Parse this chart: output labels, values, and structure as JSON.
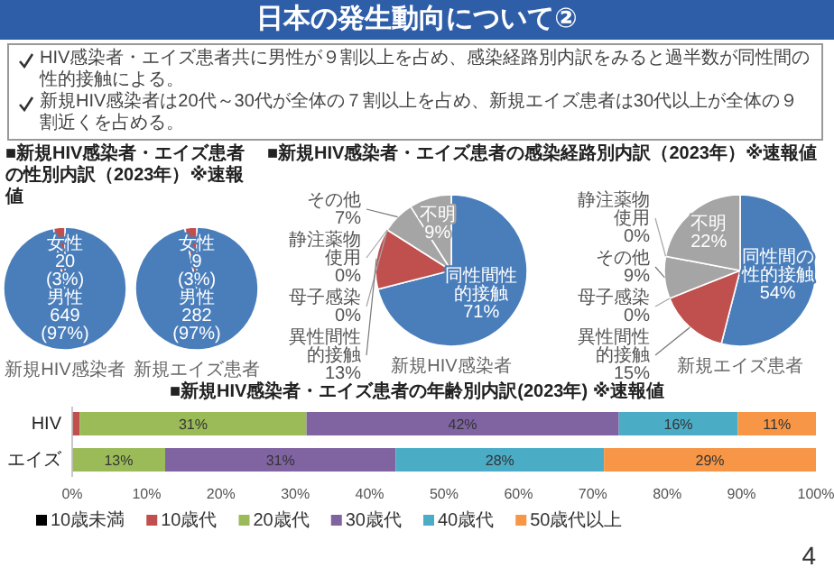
{
  "chart_data": [
    {
      "type": "other",
      "title": "日本の発生動向について②",
      "annotations": [
        "HIV感染者・エイズ患者共に男性が９割以上を占め、感染経路別内訳をみると過半数が同性間の性的接触による。",
        "新規HIV感染者は20代～30代が全体の７割以上を占め、新規エイズ患者は30代以上が全体の９割近くを占める。"
      ]
    },
    {
      "type": "pie",
      "title": "■新規HIV感染者・エイズ患者の性別内訳（2023年）※速報値",
      "xlabel": "新規HIV感染者",
      "categories": [
        "男性",
        "女性"
      ],
      "values": [
        649,
        20
      ],
      "colors": [
        "#4a7ebb",
        "#c0504d"
      ],
      "value_labels": [
        "649\n(97%)",
        "20\n(3%)"
      ]
    },
    {
      "type": "pie",
      "xlabel": "新規エイズ患者",
      "categories": [
        "男性",
        "女性"
      ],
      "values": [
        282,
        9
      ],
      "colors": [
        "#4a7ebb",
        "#c0504d"
      ],
      "value_labels": [
        "282\n(97%)",
        "9\n(3%)"
      ]
    },
    {
      "type": "pie",
      "title": "■新規HIV感染者・エイズ患者の感染経路別内訳（2023年）※速報値",
      "xlabel": "新規HIV感染者",
      "categories": [
        "同性間性的接触",
        "異性間性的接触",
        "母子感染",
        "静注薬物使用",
        "その他",
        "不明"
      ],
      "values": [
        71,
        13,
        0,
        0,
        7,
        9
      ],
      "colors": [
        "#4a7ebb",
        "#c0504d",
        "#a5a5a5",
        "#a5a5a5",
        "#a5a5a5",
        "#a5a5a5"
      ],
      "value_labels": [
        "71%",
        "13%",
        "0%",
        "0%",
        "7%",
        "9%"
      ]
    },
    {
      "type": "pie",
      "xlabel": "新規エイズ患者",
      "categories": [
        "同性間の性的接触",
        "異性間性的接触",
        "母子感染",
        "その他",
        "静注薬物使用",
        "不明"
      ],
      "values": [
        54,
        15,
        0,
        9,
        0,
        22
      ],
      "colors": [
        "#4a7ebb",
        "#c0504d",
        "#a5a5a5",
        "#a5a5a5",
        "#a5a5a5",
        "#a5a5a5"
      ],
      "value_labels": [
        "54%",
        "15%",
        "0%",
        "9%",
        "0%",
        "22%"
      ]
    },
    {
      "type": "bar",
      "orientation": "horizontal",
      "stacked": true,
      "title": "■新規HIV感染者・エイズ患者の年齢別内訳(2023年) ※速報値",
      "categories": [
        "HIV",
        "エイズ"
      ],
      "series": [
        {
          "name": "10歳未満",
          "color": "#000000",
          "values": [
            0,
            0
          ],
          "value_labels": [
            null,
            null
          ]
        },
        {
          "name": "10歳代",
          "color": "#c0504d",
          "values": [
            1,
            0
          ],
          "value_labels": [
            null,
            null
          ]
        },
        {
          "name": "20歳代",
          "color": "#9bbb59",
          "values": [
            30.5,
            12.5
          ],
          "value_labels": [
            "31%",
            "13%"
          ]
        },
        {
          "name": "30歳代",
          "color": "#8064a2",
          "values": [
            42,
            31
          ],
          "value_labels": [
            "42%",
            "31%"
          ]
        },
        {
          "name": "40歳代",
          "color": "#4bacc6",
          "values": [
            16,
            28
          ],
          "value_labels": [
            "16%",
            "28%"
          ]
        },
        {
          "name": "50歳代以上",
          "color": "#f79646",
          "values": [
            10.5,
            28.5
          ],
          "value_labels": [
            "11%",
            "29%"
          ]
        }
      ],
      "xlim": [
        0,
        100
      ],
      "xticks": [
        {
          "value": 0,
          "label": "0%"
        },
        {
          "value": 10,
          "label": "10%"
        },
        {
          "value": 20,
          "label": "20%"
        },
        {
          "value": 30,
          "label": "30%"
        },
        {
          "value": 40,
          "label": "40%"
        },
        {
          "value": 50,
          "label": "50%"
        },
        {
          "value": 60,
          "label": "60%"
        },
        {
          "value": 70,
          "label": "70%"
        },
        {
          "value": 80,
          "label": "80%"
        },
        {
          "value": 90,
          "label": "90%"
        },
        {
          "value": 100,
          "label": "100%"
        }
      ],
      "legend": "bottom",
      "annotations": [
        "4"
      ]
    }
  ]
}
